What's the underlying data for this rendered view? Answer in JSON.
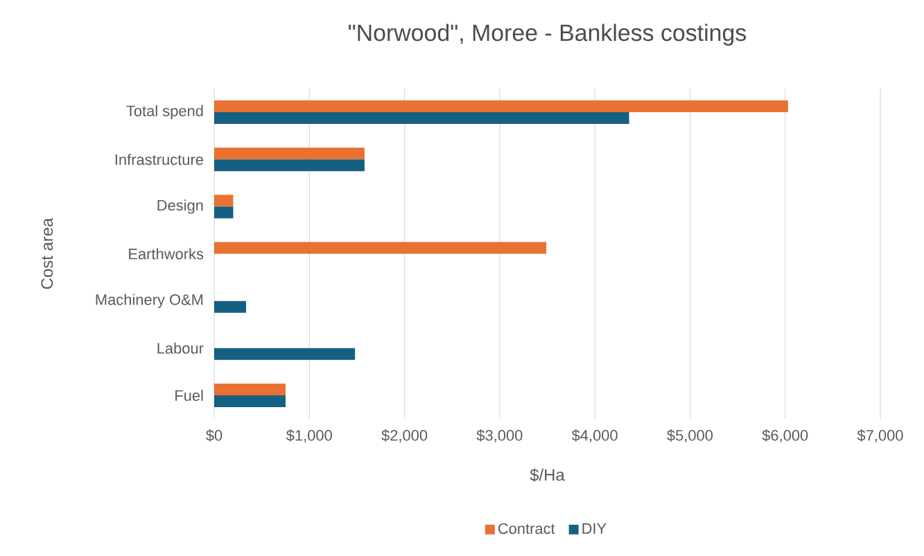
{
  "chart_data": {
    "type": "bar",
    "orientation": "horizontal",
    "title": "\"Norwood\", Moree - Bankless costings",
    "xlabel": "$/Ha",
    "ylabel": "Cost area",
    "categories": [
      "Total spend",
      "Infrastructure",
      "Design",
      "Earthworks",
      "Machinery O&M",
      "Labour",
      "Fuel"
    ],
    "series": [
      {
        "name": "Contract",
        "color": "#e97132",
        "values": [
          6030,
          1580,
          200,
          3490,
          null,
          null,
          750
        ]
      },
      {
        "name": "DIY",
        "color": "#156082",
        "values": [
          4360,
          1580,
          200,
          null,
          335,
          1480,
          750
        ]
      }
    ],
    "xlim": [
      0,
      7000
    ],
    "xticks": [
      {
        "value": 0,
        "label": "$0"
      },
      {
        "value": 1000,
        "label": "$1,000"
      },
      {
        "value": 2000,
        "label": "$2,000"
      },
      {
        "value": 3000,
        "label": "$3,000"
      },
      {
        "value": 4000,
        "label": "$4,000"
      },
      {
        "value": 5000,
        "label": "$5,000"
      },
      {
        "value": 6000,
        "label": "$6,000"
      },
      {
        "value": 7000,
        "label": "$7,000"
      }
    ],
    "grid": "x",
    "legend": "bottom"
  }
}
